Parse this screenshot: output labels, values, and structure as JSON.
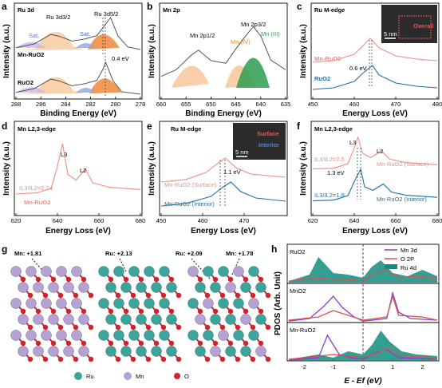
{
  "panels": {
    "a": {
      "letter": "a",
      "title": "Ru 3d",
      "xlabel": "Binding Energy (eV)",
      "ylabel": "Intensity (a.u.)",
      "xticks": [
        "288",
        "286",
        "284",
        "282",
        "280",
        "278"
      ],
      "peak1": "Ru 3d3/2",
      "peak2": "Ru 3d5/2",
      "sat1": "Sat.",
      "sat2": "Sat.",
      "trace1": "Mn-RuO2",
      "trace2": "RuO2",
      "shift": "0.4 eV"
    },
    "b": {
      "letter": "b",
      "title": "Mn 2p",
      "xlabel": "Binding Energy (eV)",
      "ylabel": "Intensity (a.u.)",
      "xticks": [
        "660",
        "655",
        "650",
        "645",
        "640",
        "635"
      ],
      "peak1": "Mn 2p1/2",
      "peak2": "Mn 2p3/2",
      "mn4": "Mn (IV)",
      "mn3": "Mn (III)"
    },
    "c": {
      "letter": "c",
      "title": "Ru M-edge",
      "xlabel": "Energy Loss (eV)",
      "ylabel": "Intensity (a.u.)",
      "xticks": [
        "450",
        "460",
        "470",
        "480"
      ],
      "trace1": "Mn-RuO2",
      "trace2": "RuO2",
      "shift": "0.6 eV",
      "inset_label": "Overall",
      "scale": "5 nm"
    },
    "d": {
      "letter": "d",
      "title": "Mn L2,3-edge",
      "xlabel": "Energy Loss (eV)",
      "ylabel": "Intensity (a.u.)",
      "xticks": [
        "620",
        "640",
        "660",
        "680"
      ],
      "l3": "L3",
      "l2": "L2",
      "ratio": "IL3/IL2=2.24",
      "trace": "Mn-RuO2"
    },
    "e": {
      "letter": "e",
      "title": "Ru M-edge",
      "xlabel": "Energy Loss (eV)",
      "ylabel": "Intensity (a.u.)",
      "xticks": [
        "450",
        "460",
        "470"
      ],
      "trace1": "Mn-RuO2 (Surface)",
      "trace2": "Mn-RuO2 (Interior)",
      "shift": "1.1 eV",
      "inset_surface": "Surface",
      "inset_interior": "Interior",
      "scale": "5 nm"
    },
    "f": {
      "letter": "f",
      "title": "Mn L2,3-edge",
      "xlabel": "Energy Loss (eV)",
      "ylabel": "Intensity (a.u.)",
      "xticks": [
        "620",
        "640",
        "660",
        "680"
      ],
      "l3": "L3",
      "l2": "L2",
      "ratio1": "IL3/IL2=2.5",
      "ratio2": "IL3/IL2=1.9",
      "trace1": "Mn-RuO2 (Surface)",
      "trace2": "Mn-RuO2 (Interior)",
      "shift": "1.3 eV"
    },
    "g": {
      "letter": "g",
      "labels": [
        "Mn: +1.81",
        "Ru: +2.13",
        "Ru: +2.09",
        "Mn: +1.78"
      ],
      "legend": [
        "Ru",
        "Mn",
        "O"
      ]
    },
    "h": {
      "letter": "h",
      "ylabel": "PDOS (Arb. Unit)",
      "xlabel": "E - Ef (eV)",
      "xticks": [
        "-2",
        "-1",
        "0",
        "1",
        "2"
      ],
      "rows": [
        "RuO2",
        "MnO2",
        "Mn-RuO2"
      ],
      "legend": [
        "Mn 3d",
        "O 2P",
        "Ru 4d"
      ]
    }
  },
  "colors": {
    "orange": "#f08a3c",
    "light_orange": "#f7c79a",
    "blue": "#2a6fb0",
    "lavender": "#c9b8e8",
    "salmon": "#f28b82",
    "red": "#e05a5a",
    "teal_blue": "#1f6fa3",
    "green": "#2e9e4f",
    "mn_purple": "#b5a2d4",
    "ru_teal": "#3aa59a",
    "o_red": "#d2232a",
    "pdos_purple": "#8a3fcf",
    "pdos_red": "#d9534f",
    "pdos_teal": "#128c7e"
  },
  "chart_data": [
    {
      "panel": "a",
      "type": "line",
      "title": "Ru 3d",
      "xlabel": "Binding Energy (eV)",
      "ylabel": "Intensity (a.u.)",
      "xlim": [
        288,
        278
      ],
      "series": [
        {
          "name": "Mn-RuO2",
          "x": [
            288,
            286.5,
            285.2,
            284.5,
            283.5,
            282.5,
            281.5,
            280.8,
            280.4,
            279.8,
            279,
            278
          ],
          "y": [
            0.1,
            0.22,
            0.5,
            0.44,
            0.3,
            0.36,
            0.46,
            0.8,
            1.0,
            0.45,
            0.12,
            0.05
          ]
        },
        {
          "name": "RuO2",
          "x": [
            288,
            286.5,
            285.2,
            284.5,
            283.5,
            282.5,
            281.5,
            281.0,
            280.8,
            280.2,
            279.5,
            278
          ],
          "y": [
            0.1,
            0.22,
            0.5,
            0.44,
            0.3,
            0.36,
            0.46,
            0.8,
            1.0,
            0.45,
            0.12,
            0.05
          ]
        }
      ]
    },
    {
      "panel": "b",
      "type": "line",
      "title": "Mn 2p",
      "xlabel": "Binding Energy (eV)",
      "ylabel": "Intensity (a.u.)",
      "xlim": [
        660,
        635
      ],
      "series": [
        {
          "name": "Mn 2p",
          "x": [
            660,
            657,
            654,
            652.5,
            650,
            647,
            645,
            643,
            641.5,
            640,
            638,
            635
          ],
          "y": [
            0.2,
            0.3,
            0.52,
            0.6,
            0.44,
            0.4,
            0.62,
            0.82,
            0.96,
            0.82,
            0.45,
            0.3
          ]
        }
      ]
    },
    {
      "panel": "c",
      "type": "line",
      "title": "Ru M-edge",
      "xlabel": "Energy Loss (eV)",
      "ylabel": "Intensity (a.u.)",
      "xlim": [
        450,
        480
      ],
      "series": [
        {
          "name": "Mn-RuO2",
          "x": [
            450,
            455,
            460,
            462,
            463.8,
            466,
            470,
            475,
            480
          ],
          "y": [
            0.1,
            0.15,
            0.35,
            0.6,
            0.85,
            0.55,
            0.3,
            0.2,
            0.15
          ]
        },
        {
          "name": "RuO2",
          "x": [
            450,
            455,
            460,
            462,
            464.4,
            466,
            470,
            475,
            480
          ],
          "y": [
            0.1,
            0.15,
            0.35,
            0.6,
            0.85,
            0.55,
            0.3,
            0.2,
            0.15
          ]
        }
      ]
    },
    {
      "panel": "d",
      "type": "line",
      "title": "Mn L2,3-edge",
      "xlabel": "Energy Loss (eV)",
      "ylabel": "Intensity (a.u.)",
      "xlim": [
        620,
        680
      ],
      "series": [
        {
          "name": "Mn-RuO2",
          "x": [
            620,
            630,
            637,
            640,
            642.5,
            645,
            649,
            653.5,
            657,
            665,
            680
          ],
          "y": [
            0.1,
            0.12,
            0.2,
            0.6,
            1.0,
            0.45,
            0.35,
            0.55,
            0.3,
            0.22,
            0.18
          ]
        }
      ]
    },
    {
      "panel": "e",
      "type": "line",
      "title": "Ru M-edge",
      "xlabel": "Energy Loss (eV)",
      "ylabel": "Intensity (a.u.)",
      "xlim": [
        450,
        475
      ],
      "series": [
        {
          "name": "Mn-RuO2 (Surface)",
          "x": [
            450,
            455,
            459,
            461.5,
            462.9,
            465,
            468,
            475
          ],
          "y": [
            0.1,
            0.18,
            0.4,
            0.7,
            0.85,
            0.55,
            0.35,
            0.25
          ]
        },
        {
          "name": "Mn-RuO2 (Interior)",
          "x": [
            450,
            455,
            460,
            462.5,
            464.0,
            466,
            469,
            475
          ],
          "y": [
            0.1,
            0.18,
            0.4,
            0.7,
            0.85,
            0.55,
            0.35,
            0.25
          ]
        }
      ]
    },
    {
      "panel": "f",
      "type": "line",
      "title": "Mn L2,3-edge",
      "xlabel": "Energy Loss (eV)",
      "ylabel": "Intensity (a.u.)",
      "xlim": [
        620,
        680
      ],
      "series": [
        {
          "name": "Mn-RuO2 (Surface)",
          "x": [
            620,
            630,
            637,
            640,
            641.8,
            644,
            648,
            653,
            657,
            665,
            680
          ],
          "y": [
            0.1,
            0.12,
            0.25,
            0.7,
            1.0,
            0.55,
            0.42,
            0.62,
            0.38,
            0.28,
            0.22
          ]
        },
        {
          "name": "Mn-RuO2 (Interior)",
          "x": [
            620,
            630,
            637,
            640,
            643.1,
            645,
            649,
            654,
            658,
            665,
            680
          ],
          "y": [
            0.1,
            0.12,
            0.25,
            0.65,
            1.0,
            0.5,
            0.4,
            0.58,
            0.35,
            0.26,
            0.2
          ]
        }
      ]
    },
    {
      "panel": "h",
      "type": "area",
      "ylabel": "PDOS (Arb. Unit)",
      "xlabel": "E - Ef (eV)",
      "xlim": [
        -2.5,
        2.5
      ],
      "rows": [
        {
          "name": "RuO2",
          "series": [
            {
              "name": "Ru 4d",
              "x": [
                -2.5,
                -1.8,
                -1.5,
                -1.0,
                -0.5,
                0,
                0.3,
                0.6,
                1.0,
                1.5,
                2.0,
                2.5
              ],
              "y": [
                0.05,
                0.25,
                0.8,
                0.3,
                0.25,
                0.15,
                0.5,
                0.7,
                0.3,
                0.2,
                0.4,
                0.2
              ]
            },
            {
              "name": "O 2P",
              "x": [
                -2.5,
                -1.5,
                -1.0,
                -0.5,
                0,
                0.4,
                0.8,
                1.2,
                2.0,
                2.5
              ],
              "y": [
                0.05,
                0.15,
                0.1,
                0.1,
                0.05,
                0.3,
                0.4,
                0.15,
                0.2,
                0.1
              ]
            }
          ]
        },
        {
          "name": "MnO2",
          "series": [
            {
              "name": "Mn 3d",
              "x": [
                -2.5,
                -1.8,
                -1.3,
                -1.0,
                -0.7,
                -0.3,
                0,
                0.8,
                1.0,
                1.2,
                1.6,
                2.5
              ],
              "y": [
                0.02,
                0.1,
                0.5,
                0.8,
                0.45,
                0.15,
                0.02,
                0.1,
                0.9,
                0.3,
                0.1,
                0.05
              ]
            },
            {
              "name": "O 2P",
              "x": [
                -2.5,
                -1.5,
                -1.0,
                -0.5,
                0,
                0.8,
                1.0,
                1.2,
                2.0,
                2.5
              ],
              "y": [
                0.05,
                0.15,
                0.35,
                0.2,
                0.05,
                0.15,
                0.8,
                0.2,
                0.15,
                0.05
              ]
            }
          ]
        },
        {
          "name": "Mn-RuO2",
          "series": [
            {
              "name": "Ru 4d",
              "x": [
                -2.5,
                -1.5,
                -1.0,
                -0.5,
                0,
                0.3,
                0.6,
                0.9,
                1.3,
                1.8,
                2.5
              ],
              "y": [
                0.05,
                0.2,
                0.1,
                0.3,
                0.2,
                0.5,
                0.95,
                0.6,
                0.3,
                0.2,
                0.15
              ]
            },
            {
              "name": "Mn 3d",
              "x": [
                -2.5,
                -1.5,
                -1.2,
                -1.0,
                -0.8,
                -0.4,
                0,
                0.4,
                0.8,
                1.2,
                2.5
              ],
              "y": [
                0.02,
                0.1,
                0.8,
                0.5,
                0.2,
                0.1,
                0.05,
                0.25,
                0.35,
                0.1,
                0.05
              ]
            },
            {
              "name": "O 2P",
              "x": [
                -2.5,
                -1.5,
                -1.0,
                -0.5,
                0,
                0.5,
                0.9,
                1.3,
                2.0,
                2.5
              ],
              "y": [
                0.05,
                0.15,
                0.2,
                0.15,
                0.1,
                0.25,
                0.4,
                0.15,
                0.15,
                0.05
              ]
            }
          ]
        }
      ]
    }
  ]
}
